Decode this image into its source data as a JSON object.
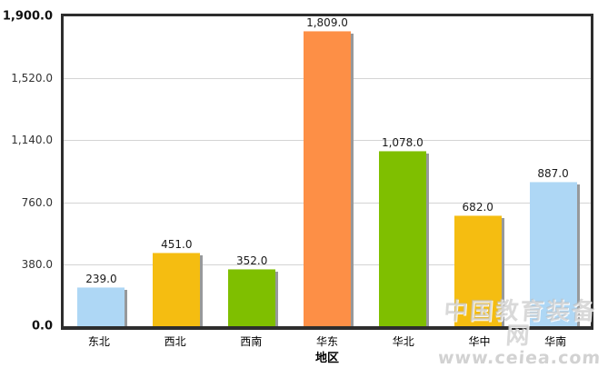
{
  "chart_data": {
    "type": "bar",
    "title": "",
    "xlabel": "地区",
    "ylabel": "",
    "categories": [
      "东北",
      "西北",
      "西南",
      "华东",
      "华北",
      "华中",
      "华南"
    ],
    "values": [
      239,
      451,
      352,
      1809,
      1078,
      682,
      887
    ],
    "value_labels": [
      "239.0",
      "451.0",
      "352.0",
      "1,809.0",
      "1,078.0",
      "682.0",
      "887.0"
    ],
    "bar_colors": [
      "#AED7F5",
      "#F5BD11",
      "#7FBF00",
      "#FD8F46",
      "#7FBF00",
      "#F5BD11",
      "#AED7F5"
    ],
    "ylim": [
      0,
      1900
    ],
    "y_ticks": [
      0,
      380,
      760,
      1140,
      1520,
      1900
    ],
    "y_tick_labels_top_to_bottom": [
      "1,900.0",
      "1,520.0",
      "1,140.0",
      "760.0",
      "380.0",
      "0.0"
    ],
    "grid": true,
    "legend": false,
    "colors": {
      "axis_border": "#2d2d2d",
      "gridline": "#d4d4d4",
      "bar_shadow": "#97999b",
      "background": "#ffffff"
    }
  },
  "watermark": {
    "line1": "中国教育装备网",
    "line2": "www.ceiea.com"
  }
}
